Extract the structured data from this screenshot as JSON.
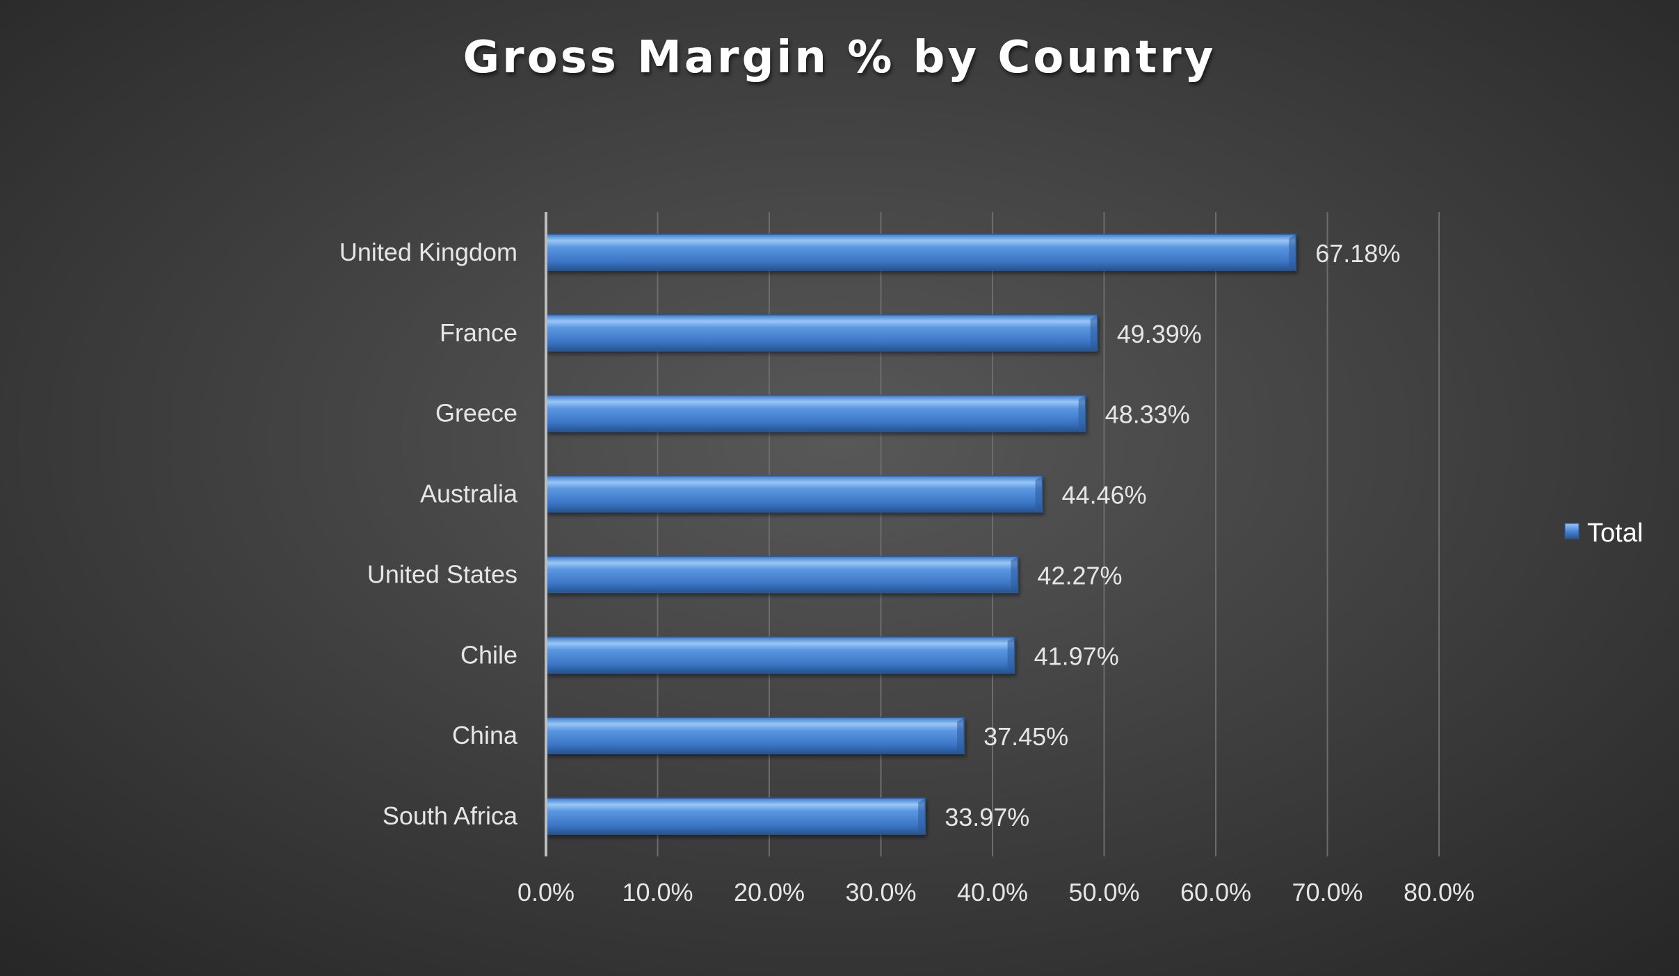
{
  "chart_data": {
    "type": "bar",
    "orientation": "horizontal",
    "title": "Gross Margin % by Country",
    "categories": [
      "United Kingdom",
      "France",
      "Greece",
      "Australia",
      "United States",
      "Chile",
      "China",
      "South Africa"
    ],
    "series": [
      {
        "name": "Total",
        "values": [
          67.18,
          49.39,
          48.33,
          44.46,
          42.27,
          41.97,
          37.45,
          33.97
        ],
        "data_labels": [
          "67.18%",
          "49.39%",
          "48.33%",
          "44.46%",
          "42.27%",
          "41.97%",
          "37.45%",
          "33.97%"
        ]
      }
    ],
    "xlim": [
      0,
      80
    ],
    "x_ticks": [
      0,
      10,
      20,
      30,
      40,
      50,
      60,
      70,
      80
    ],
    "x_tick_labels": [
      "0.0%",
      "10.0%",
      "20.0%",
      "30.0%",
      "40.0%",
      "50.0%",
      "60.0%",
      "70.0%",
      "80.0%"
    ],
    "xlabel": "",
    "ylabel": "",
    "grid": true,
    "legend": "right",
    "colors": {
      "bar": "#4a86d4",
      "bar_highlight": "#8cbcf2",
      "bar_shadow": "#2c5a9a",
      "background_center": "#565656",
      "background_edge": "#262626",
      "gridline": "#6c6c6c",
      "axis": "#bdbdbd",
      "text": "#e6e6e6"
    }
  }
}
